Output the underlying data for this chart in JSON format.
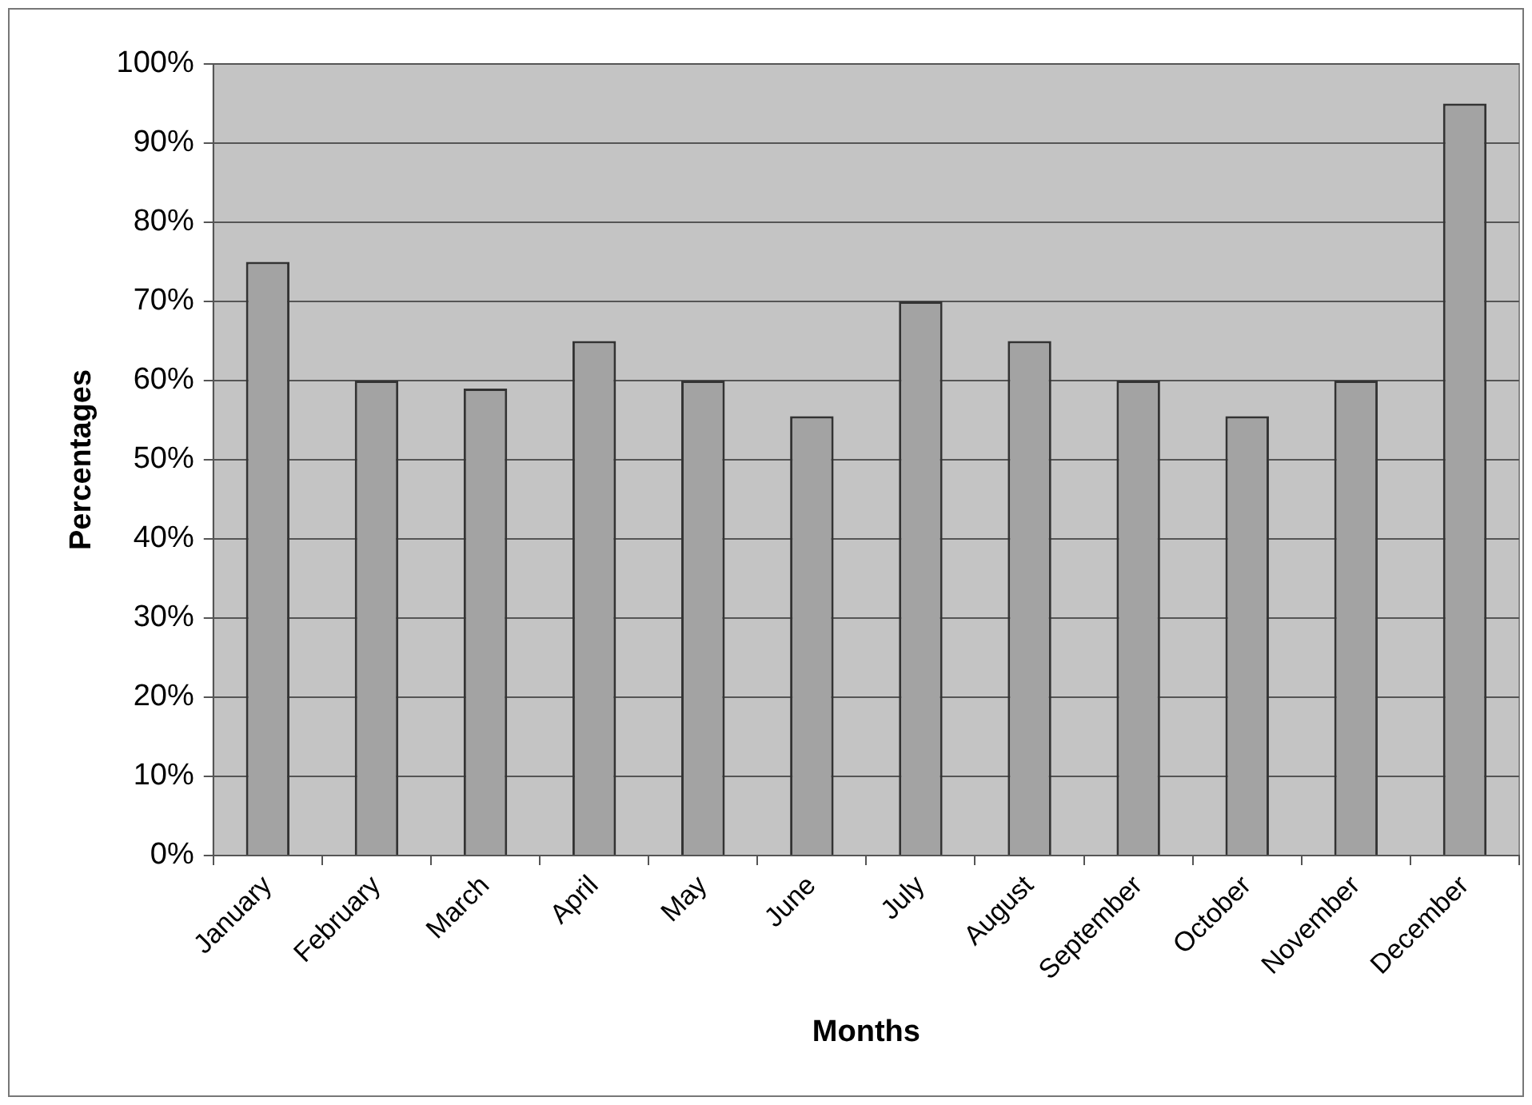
{
  "chart_data": {
    "type": "bar",
    "xlabel": "Months",
    "ylabel": "Percentages",
    "categories": [
      "January",
      "February",
      "March",
      "April",
      "May",
      "June",
      "July",
      "August",
      "September",
      "October",
      "November",
      "December"
    ],
    "values": [
      75,
      60,
      59,
      65,
      60,
      55.5,
      70,
      65,
      60,
      55.5,
      60,
      95
    ],
    "color": "#a3a3a3",
    "ylim": [
      0,
      100
    ],
    "yticks": [
      {
        "value": 0,
        "label": "0%"
      },
      {
        "value": 10,
        "label": "10%"
      },
      {
        "value": 20,
        "label": "20%"
      },
      {
        "value": 30,
        "label": "30%"
      },
      {
        "value": 40,
        "label": "40%"
      },
      {
        "value": 50,
        "label": "50%"
      },
      {
        "value": 60,
        "label": "60%"
      },
      {
        "value": 70,
        "label": "70%"
      },
      {
        "value": 80,
        "label": "80%"
      },
      {
        "value": 90,
        "label": "90%"
      },
      {
        "value": 100,
        "label": "100%"
      }
    ],
    "grid": "y",
    "legend": false
  }
}
